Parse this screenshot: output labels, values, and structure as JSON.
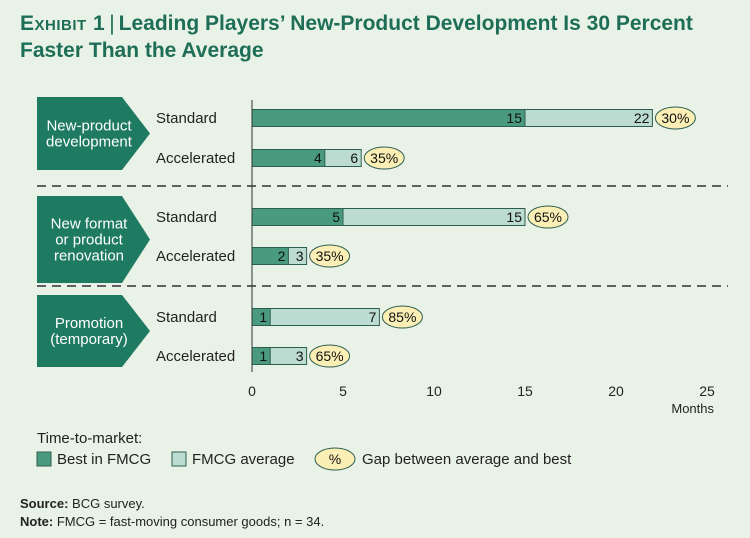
{
  "title": {
    "exhibit": "Exhibit 1",
    "separator": "|",
    "text": "Leading Players’ New-Product Development Is 30 Percent Faster Than the Average"
  },
  "colors": {
    "background": "#e9f2e6",
    "best": "#4a9a80",
    "average": "#bcdcd1",
    "gap_fill": "#fbefb6",
    "group_label_bg": "#1e7a60",
    "title": "#1e6e57"
  },
  "chart_data": {
    "type": "bar",
    "orientation": "horizontal",
    "groups": [
      {
        "label": [
          "New-product",
          "development"
        ],
        "rows": [
          {
            "label": "Standard",
            "best": 15,
            "average": 22,
            "gap": "30%"
          },
          {
            "label": "Accelerated",
            "best": 4,
            "average": 6,
            "gap": "35%"
          }
        ]
      },
      {
        "label": [
          "New format",
          "or product",
          "renovation"
        ],
        "rows": [
          {
            "label": "Standard",
            "best": 5,
            "average": 15,
            "gap": "65%"
          },
          {
            "label": "Accelerated",
            "best": 2,
            "average": 3,
            "gap": "35%"
          }
        ]
      },
      {
        "label": [
          "Promotion",
          "(temporary)"
        ],
        "rows": [
          {
            "label": "Standard",
            "best": 1,
            "average": 7,
            "gap": "85%"
          },
          {
            "label": "Accelerated",
            "best": 1,
            "average": 3,
            "gap": "65%"
          }
        ]
      }
    ],
    "xlim": [
      0,
      25
    ],
    "xticks": [
      "0",
      "5",
      "10",
      "15",
      "20",
      "25"
    ],
    "xlabel": "Months",
    "legend": {
      "title": "Time-to-market:",
      "best_label": "Best in FMCG",
      "average_label": "FMCG average",
      "gap_symbol": "%",
      "gap_label": "Gap between average and best"
    }
  },
  "footer": {
    "source_label": "Source:",
    "source_text": "BCG survey.",
    "note_label": "Note:",
    "note_text": "FMCG = fast-moving consumer goods; n = 34."
  }
}
